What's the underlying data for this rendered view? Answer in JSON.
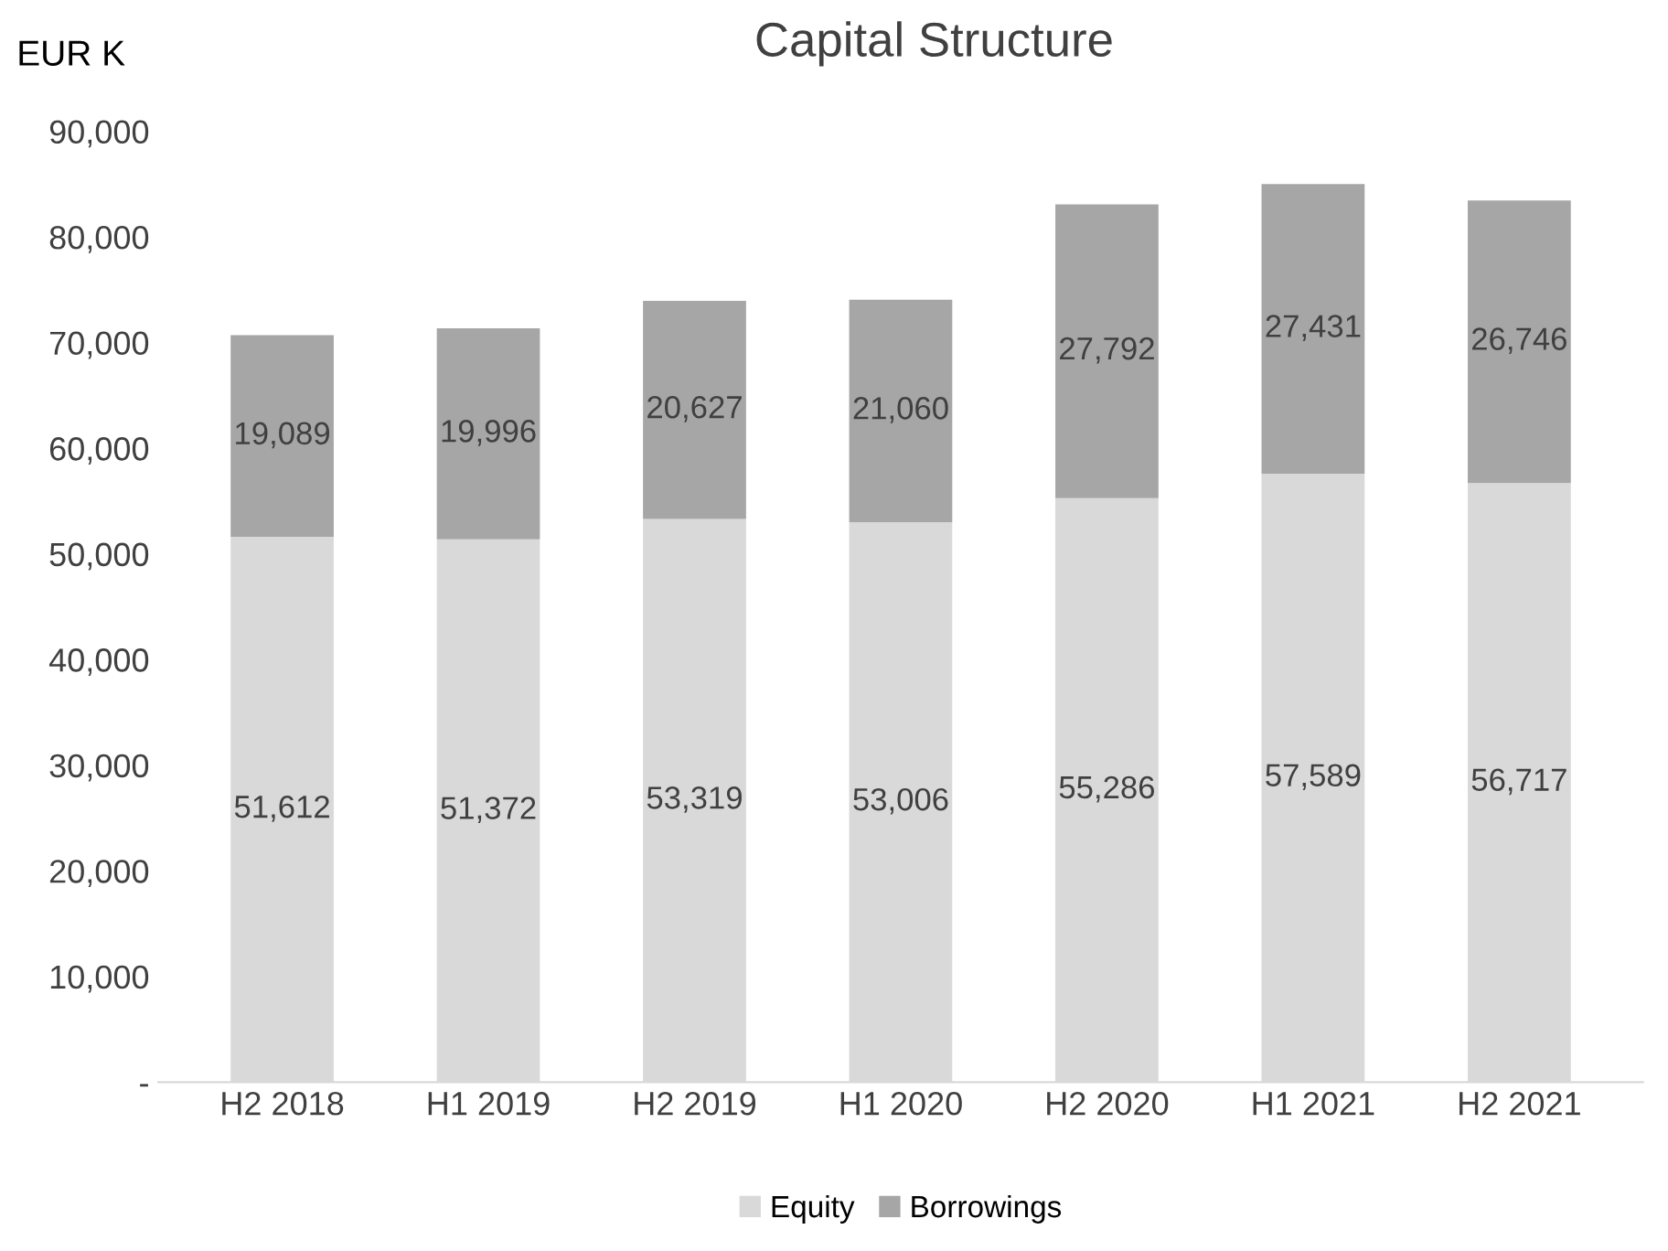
{
  "chart_data": {
    "type": "bar",
    "title": "Capital Structure",
    "ylabel": "EUR K",
    "categories": [
      "H2 2018",
      "H1 2019",
      "H2 2019",
      "H1 2020",
      "H2 2020",
      "H1 2021",
      "H2 2021"
    ],
    "series": [
      {
        "name": "Equity",
        "color": "#d9d9d9",
        "values": [
          51612,
          51372,
          53319,
          53006,
          55286,
          57589,
          56717
        ],
        "value_labels": [
          "51,612",
          "51,372",
          "53,319",
          "53,006",
          "55,286",
          "57,589",
          "56,717"
        ]
      },
      {
        "name": "Borrowings",
        "color": "#a6a6a6",
        "values": [
          19089,
          19996,
          20627,
          21060,
          27792,
          27431,
          26746
        ],
        "value_labels": [
          "19,089",
          "19,996",
          "20,627",
          "21,060",
          "27,792",
          "27,431",
          "26,746"
        ]
      }
    ],
    "stacked": true,
    "ylim": [
      0,
      90000
    ],
    "yticks": [
      {
        "value": 0,
        "label": "-"
      },
      {
        "value": 10000,
        "label": "10,000"
      },
      {
        "value": 20000,
        "label": "20,000"
      },
      {
        "value": 30000,
        "label": "30,000"
      },
      {
        "value": 40000,
        "label": "40,000"
      },
      {
        "value": 50000,
        "label": "50,000"
      },
      {
        "value": 60000,
        "label": "60,000"
      },
      {
        "value": 70000,
        "label": "70,000"
      },
      {
        "value": 80000,
        "label": "80,000"
      },
      {
        "value": 90000,
        "label": "90,000"
      }
    ],
    "grid": false,
    "legend": "bottom"
  }
}
